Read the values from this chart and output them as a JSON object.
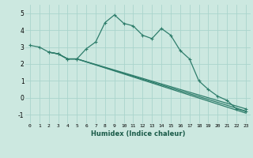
{
  "title": "",
  "xlabel": "Humidex (Indice chaleur)",
  "bg_color": "#cce8e0",
  "line_color": "#2e7d6b",
  "grid_color": "#aad4cc",
  "xlim": [
    -0.5,
    23.5
  ],
  "ylim": [
    -1.5,
    5.5
  ],
  "yticks": [
    -1,
    0,
    1,
    2,
    3,
    4,
    5
  ],
  "xticks": [
    0,
    1,
    2,
    3,
    4,
    5,
    6,
    7,
    8,
    9,
    10,
    11,
    12,
    13,
    14,
    15,
    16,
    17,
    18,
    19,
    20,
    21,
    22,
    23
  ],
  "line1_x": [
    0,
    1,
    2,
    3,
    4,
    5,
    6,
    7,
    8,
    9,
    10,
    11,
    12,
    13,
    14,
    15,
    16,
    17,
    18,
    19,
    20,
    21,
    22,
    23
  ],
  "line1_y": [
    3.1,
    3.0,
    2.7,
    2.6,
    2.3,
    2.3,
    2.9,
    3.3,
    4.45,
    4.9,
    4.4,
    4.25,
    3.7,
    3.5,
    4.1,
    3.7,
    2.8,
    2.3,
    1.0,
    0.5,
    0.1,
    -0.15,
    -0.65,
    -0.8
  ],
  "line2_x": [
    2,
    3,
    4,
    5,
    23
  ],
  "line2_y": [
    2.7,
    2.6,
    2.3,
    2.3,
    -0.65
  ],
  "line3_x": [
    2,
    3,
    4,
    5,
    23
  ],
  "line3_y": [
    2.7,
    2.6,
    2.3,
    2.3,
    -0.78
  ],
  "line4_x": [
    2,
    3,
    4,
    5,
    23
  ],
  "line4_y": [
    2.7,
    2.6,
    2.3,
    2.3,
    -0.9
  ]
}
